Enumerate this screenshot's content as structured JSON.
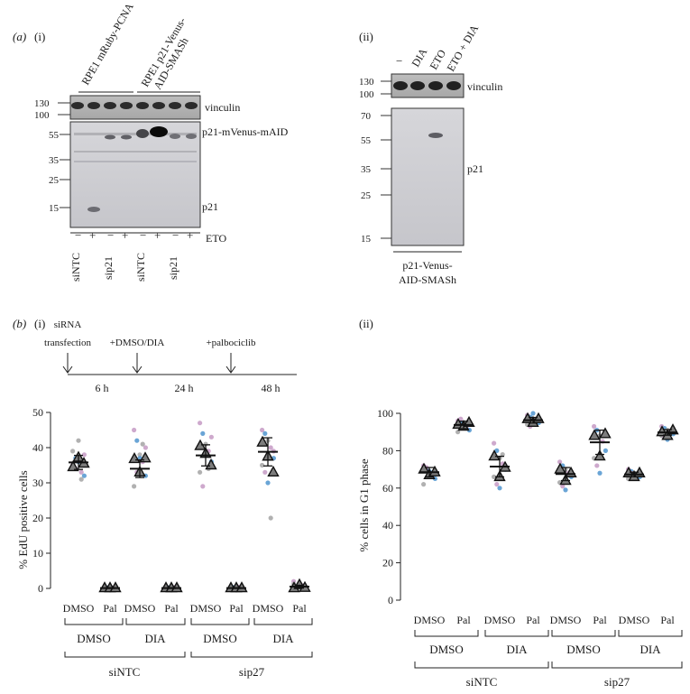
{
  "panel_a_i": {
    "panel_letter": "(a)",
    "sub": "(i)",
    "group_labels": [
      "RPE1 mRuby-PCNA",
      "RPE1 p21-Venus-",
      "AID-SMASh"
    ],
    "top_markers": [
      "130",
      "100"
    ],
    "vinculin": "vinculin",
    "bottom_markers": [
      "55",
      "35",
      "25",
      "15"
    ],
    "band_p21_fusion": "p21-mVenus-mAID",
    "band_p21": "p21",
    "lane_signs": [
      "−",
      "+",
      "−",
      "+",
      "−",
      "+",
      "−",
      "+"
    ],
    "treatment": "ETO",
    "sirna": [
      "siNTC",
      "sip21",
      "siNTC",
      "sip21"
    ]
  },
  "panel_a_ii": {
    "sub": "(ii)",
    "lanes": [
      "−",
      "DIA",
      "ETO",
      "ETO + DIA"
    ],
    "top_markers": [
      "130",
      "100"
    ],
    "vinculin": "vinculin",
    "bottom_markers": [
      "70",
      "55",
      "35",
      "25",
      "15"
    ],
    "band_p21": "p21",
    "cell_line": [
      "p21-Venus-",
      "AID-SMASh"
    ]
  },
  "panel_b_i": {
    "panel_letter": "(b)",
    "sub": "(i)",
    "timeline": {
      "events": [
        "siRNA",
        "transfection",
        "+DMSO/DIA",
        "+palbociclib"
      ],
      "durations": [
        "6 h",
        "24 h",
        "48 h"
      ]
    },
    "ylabel": "% EdU positive cells",
    "yticks": [
      "0",
      "10",
      "20",
      "30",
      "40",
      "50"
    ],
    "xlabels": [
      "DMSO",
      "Pal",
      "DMSO",
      "Pal",
      "DMSO",
      "Pal",
      "DMSO",
      "Pal"
    ],
    "groups": [
      "DMSO",
      "DIA",
      "DMSO",
      "DIA"
    ],
    "sirna": [
      "siNTC",
      "sip27"
    ]
  },
  "panel_b_ii": {
    "sub": "(ii)",
    "ylabel": "% cells in G1 phase",
    "yticks": [
      "0",
      "20",
      "40",
      "60",
      "80",
      "100"
    ],
    "xlabels": [
      "DMSO",
      "Pal",
      "DMSO",
      "Pal",
      "DMSO",
      "Pal",
      "DMSO",
      "Pal"
    ],
    "groups": [
      "DMSO",
      "DIA",
      "DMSO",
      "DIA"
    ],
    "sirna": [
      "siNTC",
      "sip27"
    ]
  },
  "colors": {
    "pink": "#c9a0c8",
    "blue": "#5a9bd1",
    "grey": "#a8a8a8",
    "triangle": "#7d7d7d"
  },
  "chart_data": [
    {
      "type": "scatter",
      "title": "",
      "ylabel": "% EdU positive cells",
      "ylim": [
        0,
        50
      ],
      "categories": [
        "siNTC DMSO DMSO",
        "siNTC DMSO Pal",
        "siNTC DIA DMSO",
        "siNTC DIA Pal",
        "sip27 DMSO DMSO",
        "sip27 DMSO Pal",
        "sip27 DIA DMSO",
        "sip27 DIA Pal"
      ],
      "means": [
        35.8,
        0.1,
        34.0,
        0.1,
        37.8,
        0.1,
        38.8,
        0.5
      ],
      "sem": [
        2.0,
        0.1,
        2.5,
        0.1,
        3.0,
        0.1,
        4.0,
        0.4
      ],
      "replicate_means": [
        [
          34.5,
          37.2,
          35.5
        ],
        [
          0.1,
          0.1,
          0.1
        ],
        [
          36.8,
          33.0,
          37.0
        ],
        [
          0.1,
          0.1,
          0.1
        ],
        [
          40.5,
          38.3,
          35.0
        ],
        [
          0.1,
          0.1,
          0.1
        ],
        [
          41.5,
          37.5,
          33.0
        ],
        [
          0.1,
          1.0,
          0.2
        ]
      ],
      "points": [
        [
          35,
          37,
          42,
          33,
          32,
          39,
          34,
          36,
          31,
          38
        ],
        [
          0.3,
          0.2,
          0.5,
          0.1,
          0.4,
          0.2
        ],
        [
          45,
          42,
          38,
          36,
          32,
          29,
          33,
          37,
          41,
          40
        ],
        [
          0.4,
          0.2,
          0.1,
          0.3,
          0.5,
          0.2
        ],
        [
          47,
          44,
          41,
          39,
          36,
          33,
          29,
          38,
          34,
          43
        ],
        [
          0.2,
          0.3,
          0.1,
          0.4,
          0.2
        ],
        [
          45,
          44,
          42,
          40,
          37,
          35,
          33,
          30,
          20,
          39
        ],
        [
          2.0,
          0.5,
          0.3,
          0.8,
          0.1,
          1.2
        ]
      ]
    },
    {
      "type": "scatter",
      "title": "",
      "ylabel": "% cells in G1 phase",
      "ylim": [
        0,
        100
      ],
      "categories": [
        "siNTC DMSO DMSO",
        "siNTC DMSO Pal",
        "siNTC DIA DMSO",
        "siNTC DIA Pal",
        "sip27 DMSO DMSO",
        "sip27 DMSO Pal",
        "sip27 DIA DMSO",
        "sip27 DIA Pal"
      ],
      "means": [
        68.5,
        93.8,
        71.5,
        96.3,
        67.5,
        84.5,
        67.3,
        89.8
      ],
      "sem": [
        2.5,
        2.0,
        5.5,
        1.5,
        3.5,
        6.5,
        1.2,
        1.5
      ],
      "replicate_means": [
        [
          70.0,
          67.0,
          68.5
        ],
        [
          94.0,
          93.0,
          95.0
        ],
        [
          77.0,
          66.0,
          71.0
        ],
        [
          97.0,
          95.0,
          97.0
        ],
        [
          70.0,
          64.0,
          68.0
        ],
        [
          88.0,
          77.0,
          89.0
        ],
        [
          68.0,
          66.0,
          68.0
        ],
        [
          90.0,
          88.0,
          91.0
        ]
      ],
      "points": [
        [
          72,
          70,
          68,
          66,
          65,
          62,
          71,
          69
        ],
        [
          96,
          95,
          94,
          92,
          91,
          90,
          97,
          93
        ],
        [
          84,
          80,
          76,
          73,
          70,
          66,
          62,
          60,
          78
        ],
        [
          99,
          98,
          97,
          96,
          95,
          94,
          93,
          100
        ],
        [
          74,
          72,
          70,
          68,
          66,
          63,
          61,
          59
        ],
        [
          93,
          91,
          88,
          85,
          80,
          76,
          72,
          68
        ],
        [
          70,
          69,
          68,
          67,
          66,
          65,
          68
        ],
        [
          93,
          92,
          91,
          90,
          89,
          88,
          87,
          86
        ]
      ]
    }
  ]
}
